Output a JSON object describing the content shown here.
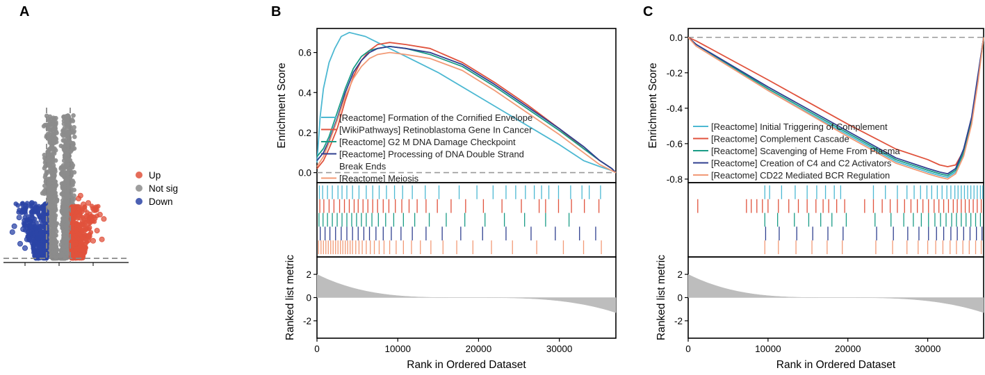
{
  "chart_data": [
    {
      "panel": "A",
      "type": "scatter",
      "title": "",
      "legend": {
        "placement": "right",
        "entries": [
          {
            "label": "Up",
            "color": "#e0523c"
          },
          {
            "label": "Not sig",
            "color": "#8c8c8c"
          },
          {
            "label": "Down",
            "color": "#2b44a6"
          }
        ]
      },
      "xlim": [
        -6,
        6
      ],
      "ylim": [
        0,
        10
      ],
      "fc_threshold": 1,
      "p_threshold": 0.35,
      "series": [
        {
          "name": "Up",
          "points": [
            [
              2.0,
              4.1
            ],
            [
              2.2,
              4.3
            ],
            [
              2.5,
              3.7
            ],
            [
              3.0,
              3.8
            ],
            [
              3.6,
              3.3
            ],
            [
              3.8,
              3.5
            ],
            [
              4.2,
              3.0
            ],
            [
              3.3,
              2.6
            ],
            [
              2.8,
              2.9
            ],
            [
              4.6,
              2.7
            ],
            [
              3.9,
              1.9
            ],
            [
              4.4,
              1.3
            ],
            [
              3.1,
              2.1
            ],
            [
              2.6,
              1.6
            ],
            [
              3.5,
              1.2
            ]
          ]
        },
        {
          "name": "Down",
          "points": [
            [
              -2.8,
              3.8
            ],
            [
              -3.4,
              3.6
            ],
            [
              -2.5,
              3.2
            ],
            [
              -4.1,
              2.8
            ],
            [
              -3.0,
              2.5
            ],
            [
              -4.6,
              2.2
            ],
            [
              -3.7,
              2.0
            ],
            [
              -2.9,
              1.7
            ],
            [
              -4.8,
              1.8
            ],
            [
              -3.3,
              1.3
            ],
            [
              -2.6,
              0.9
            ],
            [
              -4.0,
              1.0
            ],
            [
              -3.5,
              0.7
            ],
            [
              -2.4,
              2.1
            ],
            [
              -2.2,
              1.4
            ]
          ]
        }
      ]
    },
    {
      "panel": "B",
      "type": "line",
      "ylabel": "Enrichment Score",
      "xlabel": "Rank in Ordered Dataset",
      "ylim": [
        -0.05,
        0.72
      ],
      "yticks": [
        "0.0",
        "0.2",
        "0.4",
        "0.6"
      ],
      "xlim": [
        0,
        37000
      ],
      "xticks": [
        "0",
        "10000",
        "20000",
        "30000"
      ],
      "series": [
        {
          "name": "[Reactome] Formation of the Cornified Envelope",
          "color": "#4cb8d2",
          "x": [
            0,
            400,
            800,
            1500,
            2200,
            3000,
            4000,
            5000,
            6000,
            7000,
            9000,
            12000,
            15000,
            20000,
            25000,
            30000,
            33000,
            35000,
            36500,
            37000
          ],
          "y": [
            0.05,
            0.28,
            0.42,
            0.55,
            0.62,
            0.68,
            0.7,
            0.69,
            0.68,
            0.66,
            0.62,
            0.56,
            0.5,
            0.38,
            0.26,
            0.14,
            0.06,
            0.03,
            0.01,
            0
          ]
        },
        {
          "name": "[WikiPathways] Retinoblastoma Gene In Cancer",
          "color": "#e0523c",
          "x": [
            0,
            800,
            1500,
            2500,
            3500,
            4500,
            5500,
            6500,
            7500,
            9000,
            11000,
            14000,
            18000,
            22000,
            26000,
            30000,
            33000,
            35000,
            36500,
            37000
          ],
          "y": [
            0.02,
            0.06,
            0.12,
            0.22,
            0.36,
            0.48,
            0.56,
            0.61,
            0.64,
            0.65,
            0.64,
            0.62,
            0.55,
            0.45,
            0.34,
            0.22,
            0.12,
            0.06,
            0.02,
            0
          ]
        },
        {
          "name": "[Reactome] G2 M DNA Damage Checkpoint",
          "color": "#1a9c86",
          "x": [
            0,
            800,
            1500,
            2500,
            3500,
            4500,
            5500,
            6500,
            7500,
            9000,
            11000,
            14000,
            18000,
            22000,
            26000,
            30000,
            33000,
            35000,
            36500,
            37000
          ],
          "y": [
            0.08,
            0.12,
            0.18,
            0.3,
            0.42,
            0.52,
            0.58,
            0.61,
            0.62,
            0.63,
            0.62,
            0.59,
            0.53,
            0.43,
            0.32,
            0.21,
            0.12,
            0.06,
            0.02,
            0
          ]
        },
        {
          "name": "[Reactome] Processing of DNA Double Strand Break Ends",
          "color": "#2f3f8f",
          "x": [
            0,
            800,
            1500,
            2500,
            3500,
            4500,
            5500,
            6500,
            7500,
            9000,
            11000,
            14000,
            18000,
            22000,
            26000,
            30000,
            33000,
            35000,
            36500,
            37000
          ],
          "y": [
            0.06,
            0.1,
            0.16,
            0.27,
            0.4,
            0.5,
            0.56,
            0.6,
            0.62,
            0.63,
            0.62,
            0.6,
            0.54,
            0.44,
            0.33,
            0.22,
            0.13,
            0.06,
            0.02,
            0
          ]
        },
        {
          "name": "[Reactome] Meiosis",
          "color": "#f29a76",
          "x": [
            0,
            800,
            1500,
            2500,
            3500,
            4500,
            5500,
            6500,
            7500,
            9000,
            11000,
            14000,
            18000,
            22000,
            26000,
            30000,
            33000,
            35000,
            36500,
            37000
          ],
          "y": [
            0.03,
            0.08,
            0.15,
            0.26,
            0.38,
            0.47,
            0.53,
            0.57,
            0.59,
            0.6,
            0.59,
            0.57,
            0.51,
            0.41,
            0.3,
            0.19,
            0.1,
            0.04,
            0.01,
            0
          ]
        }
      ],
      "rug": [
        [
          300,
          700,
          1300,
          1900,
          2600,
          3100,
          3700,
          4400,
          5200,
          6100,
          6900,
          7700,
          8600,
          9600,
          10600,
          11800,
          13400,
          15100,
          17600,
          19800,
          21800,
          23400,
          24600,
          25800,
          26900,
          27800,
          28700,
          29900,
          31400,
          32800,
          33700,
          35100
        ],
        [
          350,
          850,
          1500,
          2100,
          2800,
          3400,
          4000,
          4600,
          5100,
          5700,
          6300,
          6900,
          7500,
          8200,
          8900,
          9700,
          10500,
          11400,
          12400,
          13500,
          14900,
          16600,
          18400,
          20600,
          22900,
          25300,
          27500,
          28300,
          29900,
          31500,
          33100,
          34900
        ],
        [
          250,
          750,
          1300,
          1900,
          2500,
          3100,
          3700,
          4300,
          4900,
          5500,
          6100,
          6800,
          7600,
          8500,
          9500,
          10700,
          12100,
          13900,
          16000,
          18300,
          20800,
          23200,
          25700,
          28300,
          31200
        ],
        [
          400,
          1000,
          1600,
          2300,
          3000,
          3700,
          4400,
          5100,
          5800,
          6500,
          7300,
          8200,
          9200,
          10400,
          11800,
          13500,
          15500,
          17800,
          20500,
          23400,
          26500,
          29500,
          32500,
          34500
        ],
        [
          200,
          500,
          800,
          1100,
          1400,
          1700,
          2000,
          2300,
          2600,
          2900,
          3200,
          3500,
          3800,
          4100,
          4400,
          4800,
          5200,
          5600,
          6100,
          6600,
          7100,
          7700,
          8300,
          9000,
          9800,
          10700,
          11700,
          12800,
          14100,
          15600,
          17300,
          19300,
          21600,
          24200,
          27200,
          30500,
          33000,
          35200
        ]
      ],
      "metric": {
        "ylabel": "Ranked list metric",
        "yticks": [
          "2",
          "0",
          "-2"
        ],
        "ylim": [
          -3.5,
          3.5
        ],
        "start": 2.0,
        "end": -1.3
      }
    },
    {
      "panel": "C",
      "type": "line",
      "ylabel": "Enrichment Score",
      "xlabel": "Rank in Ordered Dataset",
      "ylim": [
        -0.82,
        0.05
      ],
      "yticks": [
        "0.0",
        "-0.2",
        "-0.4",
        "-0.6",
        "-0.8"
      ],
      "xlim": [
        0,
        37000
      ],
      "xticks": [
        "0",
        "10000",
        "20000",
        "30000"
      ],
      "series": [
        {
          "name": "[Reactome] Initial Triggering of Complement",
          "color": "#4cb8d2",
          "x": [
            0,
            1000,
            10000,
            20000,
            26000,
            30000,
            31500,
            32500,
            33500,
            34500,
            35500,
            36300,
            37000
          ],
          "y": [
            0,
            -0.04,
            -0.3,
            -0.55,
            -0.7,
            -0.76,
            -0.78,
            -0.79,
            -0.76,
            -0.66,
            -0.48,
            -0.24,
            0
          ]
        },
        {
          "name": "[Reactome] Complement Cascade",
          "color": "#e0523c",
          "x": [
            0,
            1000,
            10000,
            20000,
            26000,
            30000,
            31500,
            32500,
            33500,
            34500,
            35500,
            36300,
            37000
          ],
          "y": [
            0,
            -0.02,
            -0.24,
            -0.49,
            -0.63,
            -0.69,
            -0.72,
            -0.73,
            -0.72,
            -0.64,
            -0.46,
            -0.22,
            0
          ]
        },
        {
          "name": "[Reactome] Scavenging of Heme From Plasma",
          "color": "#1a9c86",
          "x": [
            0,
            1000,
            10000,
            20000,
            26000,
            30000,
            31500,
            32500,
            33500,
            34500,
            35500,
            36300,
            37000
          ],
          "y": [
            0,
            -0.04,
            -0.29,
            -0.54,
            -0.69,
            -0.75,
            -0.77,
            -0.78,
            -0.75,
            -0.65,
            -0.47,
            -0.23,
            0
          ]
        },
        {
          "name": "[Reactome] Creation of C4 and C2 Activators",
          "color": "#2f3f8f",
          "x": [
            0,
            1000,
            10000,
            20000,
            26000,
            30000,
            31500,
            32500,
            33500,
            34500,
            35500,
            36300,
            37000
          ],
          "y": [
            0,
            -0.04,
            -0.28,
            -0.53,
            -0.68,
            -0.74,
            -0.76,
            -0.77,
            -0.74,
            -0.63,
            -0.45,
            -0.21,
            0
          ]
        },
        {
          "name": "[Reactome] CD22 Mediated BCR Regulation",
          "color": "#f29a76",
          "x": [
            0,
            1000,
            10000,
            20000,
            26000,
            30000,
            31500,
            32500,
            33500,
            34500,
            35500,
            36300,
            37000
          ],
          "y": [
            0,
            -0.05,
            -0.3,
            -0.56,
            -0.71,
            -0.77,
            -0.79,
            -0.8,
            -0.77,
            -0.67,
            -0.49,
            -0.25,
            0
          ]
        }
      ],
      "rug": [
        [
          9600,
          10200,
          11700,
          13400,
          14900,
          16100,
          17200,
          18300,
          19100,
          23200,
          24700,
          26200,
          27400,
          28300,
          29100,
          29900,
          30500,
          31200,
          31800,
          32400,
          32900,
          33400,
          33800,
          34200,
          34600,
          35000,
          35400,
          35800,
          36200,
          36600,
          36900
        ],
        [
          1200,
          7300,
          7900,
          8600,
          9300,
          10000,
          11300,
          12600,
          13800,
          14900,
          16000,
          16900,
          17600,
          18600,
          19600,
          22100,
          23200,
          24300,
          25300,
          26200,
          27100,
          27900,
          28700,
          29400,
          30100,
          30800,
          31400,
          32000,
          32600,
          33200,
          33700,
          34200,
          34700,
          35200,
          35700,
          36200,
          36700
        ],
        [
          9600,
          11200,
          13300,
          15100,
          16600,
          18000,
          19800,
          23400,
          25400,
          27000,
          28200,
          29200,
          30100,
          30900,
          31600,
          32300,
          33000,
          33600,
          34200,
          34800,
          35400,
          36000,
          36600
        ],
        [
          9700,
          11400,
          13600,
          15600,
          17500,
          19400,
          23600,
          25700,
          27500,
          28900,
          30100,
          31100,
          32000,
          32900,
          33700,
          34500,
          35300,
          36100,
          36800
        ],
        [
          9600,
          11300,
          13500,
          15500,
          17400,
          19300,
          23500,
          25600,
          27400,
          28800,
          30000,
          31000,
          31900,
          32800,
          33600,
          34400,
          35200,
          36000,
          36700
        ]
      ],
      "metric": {
        "ylabel": "Ranked list metric",
        "yticks": [
          "2",
          "0",
          "-2"
        ],
        "ylim": [
          -3.5,
          3.5
        ],
        "start": 2.0,
        "end": -1.3
      }
    }
  ]
}
